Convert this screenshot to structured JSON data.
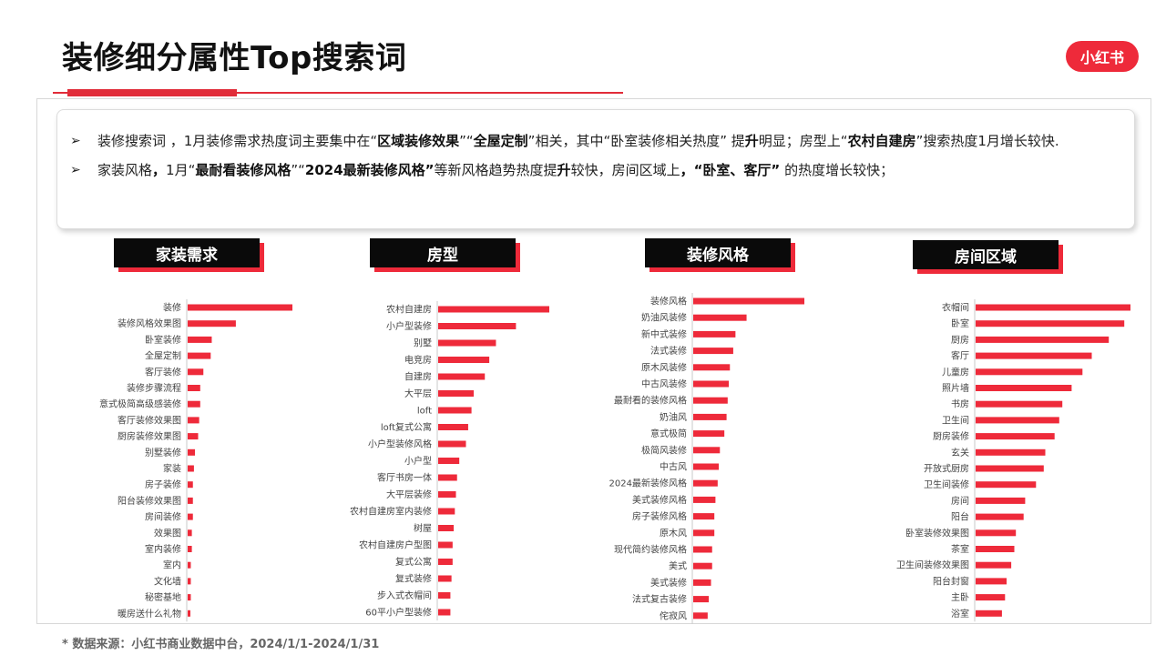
{
  "page": {
    "title": "装修细分属性Top搜索词",
    "brand": "小红书",
    "accent": "#ee2a3a"
  },
  "summary": {
    "line1": [
      {
        "t": "装修搜索词 ，1月装修需求热度词主要集中在“",
        "b": false
      },
      {
        "t": "区域装修效果",
        "b": true
      },
      {
        "t": "”“",
        "b": false
      },
      {
        "t": "全屋定制",
        "b": true
      },
      {
        "t": "”相关，其中“卧室装修相关热度” 提",
        "b": false
      },
      {
        "t": "升",
        "b": true
      },
      {
        "t": "明显；房型上“",
        "b": false
      },
      {
        "t": "农村自建房",
        "b": true
      },
      {
        "t": "”搜索热度1月增长较快.",
        "b": false
      }
    ],
    "line2": [
      {
        "t": "家装风格",
        "b": false
      },
      {
        "t": "，",
        "b": true
      },
      {
        "t": "1月“",
        "b": false
      },
      {
        "t": "最耐看装修风格",
        "b": true
      },
      {
        "t": "”“",
        "b": false
      },
      {
        "t": "2024最新装修风格”",
        "b": true
      },
      {
        "t": "等新风格趋势热度提",
        "b": false
      },
      {
        "t": "升",
        "b": true
      },
      {
        "t": "较快，房间区域上",
        "b": false
      },
      {
        "t": "，“卧室、客厅”",
        "b": true
      },
      {
        "t": " 的热度增长较快；",
        "b": false
      }
    ]
  },
  "chart_data": [
    {
      "type": "bar",
      "orientation": "horizontal",
      "title": "家装需求",
      "color": "#ee2a3a",
      "categories": [
        "装修",
        "装修风格效果图",
        "卧室装修",
        "全屋定制",
        "客厅装修",
        "装修步骤流程",
        "意式极简高级感装修",
        "客厅装修效果图",
        "厨房装修效果图",
        "别墅装修",
        "家装",
        "房子装修",
        "阳台装修效果图",
        "房间装修",
        "效果图",
        "室内装修",
        "室内",
        "文化墙",
        "秘密基地",
        "暖房送什么礼物"
      ],
      "values": [
        100,
        46,
        23,
        22,
        15,
        12,
        12,
        11,
        10,
        7,
        6,
        5,
        5,
        5,
        4,
        4,
        3,
        3,
        3,
        2
      ]
    },
    {
      "type": "bar",
      "orientation": "horizontal",
      "title": "房型",
      "color": "#ee2a3a",
      "categories": [
        "农村自建房",
        "小户型装修",
        "别墅",
        "电竞房",
        "自建房",
        "大平层",
        "loft",
        "loft复式公寓",
        "小户型装修风格",
        "小户型",
        "客厅书房一体",
        "大平层装修",
        "农村自建房室内装修",
        "树屋",
        "农村自建房户型图",
        "复式公寓",
        "复式装修",
        "步入式衣帽间",
        "60平小户型装修"
      ],
      "values": [
        100,
        70,
        52,
        46,
        42,
        32,
        30,
        27,
        25,
        19,
        17,
        16,
        15,
        14,
        13,
        13,
        12,
        11,
        11
      ]
    },
    {
      "type": "bar",
      "orientation": "horizontal",
      "title": "装修风格",
      "color": "#ee2a3a",
      "categories": [
        "装修风格",
        "奶油风装修",
        "新中式装修",
        "法式装修",
        "原木风装修",
        "中古风装修",
        "最耐看的装修风格",
        "奶油风",
        "意式极简",
        "极简风装修",
        "中古风",
        "2024最新装修风格",
        "美式装修风格",
        "房子装修风格",
        "原木风",
        "现代简约装修风格",
        "美式",
        "美式装修",
        "法式复古装修",
        "侘寂风"
      ],
      "values": [
        100,
        48,
        38,
        36,
        33,
        32,
        31,
        30,
        28,
        24,
        23,
        22,
        20,
        19,
        19,
        17,
        17,
        16,
        14,
        13
      ]
    },
    {
      "type": "bar",
      "orientation": "horizontal",
      "title": "房间区域",
      "color": "#ee2a3a",
      "categories": [
        "衣帽间",
        "卧室",
        "厨房",
        "客厅",
        "儿童房",
        "照片墙",
        "书房",
        "卫生间",
        "厨房装修",
        "玄关",
        "开放式厨房",
        "卫生间装修",
        "房间",
        "阳台",
        "卧室装修效果图",
        "茶室",
        "卫生间装修效果图",
        "阳台封窗",
        "主卧",
        "浴室"
      ],
      "values": [
        100,
        96,
        86,
        75,
        69,
        62,
        56,
        54,
        51,
        45,
        44,
        39,
        32,
        31,
        26,
        25,
        23,
        20,
        19,
        17
      ]
    }
  ],
  "footnote": "* 数据来源：小红书商业数据中台，2024/1/1-2024/1/31"
}
